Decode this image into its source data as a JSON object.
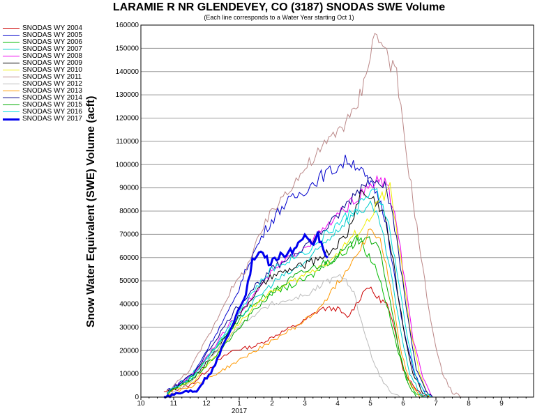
{
  "chart_data": {
    "type": "line",
    "title": "LARAMIE R NR GLENDEVEY, CO (3187) SNODAS SWE Volume",
    "subtitle": "(Each line corresponds to a Water Year starting Oct 1)",
    "ylabel": "Snow Water Equivalent (SWE) Volume (acft)",
    "xlabel": "",
    "ylim": [
      0,
      160000
    ],
    "yticks": [
      0,
      10000,
      20000,
      30000,
      40000,
      50000,
      60000,
      70000,
      80000,
      90000,
      100000,
      110000,
      120000,
      130000,
      140000,
      150000,
      160000
    ],
    "xlim": [
      10,
      10.95
    ],
    "xticks": [
      10,
      11,
      12,
      1,
      2,
      3,
      4,
      5,
      6,
      7,
      8,
      9
    ],
    "x_year_label": "2017",
    "x_unit": "month of water year",
    "grid": "horizontal",
    "legend_position": "left",
    "series": [
      {
        "name": "SNODAS WY 2004",
        "color": "#cc0000",
        "width": 1,
        "points": [
          [
            10.7,
            2000
          ],
          [
            11.5,
            5000
          ],
          [
            12.3,
            15000
          ],
          [
            12.8,
            20000
          ],
          [
            1.5,
            22000
          ],
          [
            2.3,
            28000
          ],
          [
            2.9,
            32000
          ],
          [
            3.5,
            38000
          ],
          [
            4.0,
            38000
          ],
          [
            4.3,
            34000
          ],
          [
            4.7,
            43000
          ],
          [
            4.9,
            48000
          ],
          [
            5.2,
            43000
          ],
          [
            5.5,
            40000
          ],
          [
            5.8,
            26000
          ],
          [
            6.0,
            12000
          ],
          [
            6.3,
            5000
          ],
          [
            6.6,
            1000
          ],
          [
            6.8,
            0
          ]
        ]
      },
      {
        "name": "SNODAS WY 2005",
        "color": "#0000cc",
        "width": 1,
        "points": [
          [
            10.8,
            3000
          ],
          [
            11.6,
            10000
          ],
          [
            12.2,
            25000
          ],
          [
            12.8,
            40000
          ],
          [
            1.3,
            58000
          ],
          [
            1.8,
            72000
          ],
          [
            2.3,
            82000
          ],
          [
            2.9,
            88000
          ],
          [
            3.5,
            95000
          ],
          [
            3.9,
            98000
          ],
          [
            4.3,
            102000
          ],
          [
            4.6,
            100000
          ],
          [
            4.9,
            93000
          ],
          [
            5.2,
            88000
          ],
          [
            5.5,
            75000
          ],
          [
            5.7,
            55000
          ],
          [
            6.0,
            30000
          ],
          [
            6.3,
            12000
          ],
          [
            6.6,
            3000
          ],
          [
            6.9,
            0
          ]
        ]
      },
      {
        "name": "SNODAS WY 2006",
        "color": "#00bb00",
        "width": 1,
        "points": [
          [
            10.8,
            2000
          ],
          [
            11.5,
            8000
          ],
          [
            12.2,
            20000
          ],
          [
            12.8,
            30000
          ],
          [
            1.4,
            40000
          ],
          [
            2.0,
            45000
          ],
          [
            2.6,
            48000
          ],
          [
            3.2,
            52000
          ],
          [
            3.7,
            58000
          ],
          [
            4.2,
            62000
          ],
          [
            4.6,
            70000
          ],
          [
            4.9,
            62000
          ],
          [
            5.2,
            55000
          ],
          [
            5.5,
            40000
          ],
          [
            5.8,
            22000
          ],
          [
            6.1,
            8000
          ],
          [
            6.4,
            2000
          ],
          [
            6.6,
            0
          ]
        ]
      },
      {
        "name": "SNODAS WY 2007",
        "color": "#00cccc",
        "width": 1,
        "points": [
          [
            10.8,
            2000
          ],
          [
            11.5,
            9000
          ],
          [
            12.3,
            22000
          ],
          [
            12.9,
            32000
          ],
          [
            1.5,
            42000
          ],
          [
            2.1,
            50000
          ],
          [
            2.7,
            55000
          ],
          [
            3.2,
            60000
          ],
          [
            3.7,
            68000
          ],
          [
            4.2,
            75000
          ],
          [
            4.6,
            80000
          ],
          [
            5.0,
            82000
          ],
          [
            5.3,
            75000
          ],
          [
            5.6,
            55000
          ],
          [
            5.9,
            30000
          ],
          [
            6.2,
            10000
          ],
          [
            6.5,
            2000
          ],
          [
            6.7,
            0
          ]
        ]
      },
      {
        "name": "SNODAS WY 2008",
        "color": "#ee00ee",
        "width": 1,
        "points": [
          [
            10.8,
            2000
          ],
          [
            11.6,
            10000
          ],
          [
            12.3,
            23000
          ],
          [
            12.9,
            35000
          ],
          [
            1.5,
            45000
          ],
          [
            2.1,
            55000
          ],
          [
            2.7,
            62000
          ],
          [
            3.3,
            68000
          ],
          [
            3.8,
            75000
          ],
          [
            4.3,
            82000
          ],
          [
            4.8,
            88000
          ],
          [
            5.2,
            93000
          ],
          [
            5.5,
            92000
          ],
          [
            5.8,
            75000
          ],
          [
            6.1,
            45000
          ],
          [
            6.3,
            25000
          ],
          [
            6.6,
            8000
          ],
          [
            6.9,
            0
          ]
        ]
      },
      {
        "name": "SNODAS WY 2009",
        "color": "#000000",
        "width": 1,
        "points": [
          [
            10.8,
            2000
          ],
          [
            11.6,
            8000
          ],
          [
            12.3,
            20000
          ],
          [
            12.9,
            33000
          ],
          [
            1.5,
            45000
          ],
          [
            2.0,
            52000
          ],
          [
            2.6,
            55000
          ],
          [
            3.2,
            58000
          ],
          [
            3.8,
            63000
          ],
          [
            4.3,
            70000
          ],
          [
            4.7,
            88000
          ],
          [
            5.1,
            85000
          ],
          [
            5.4,
            80000
          ],
          [
            5.7,
            58000
          ],
          [
            6.0,
            30000
          ],
          [
            6.3,
            10000
          ],
          [
            6.6,
            2000
          ],
          [
            6.8,
            0
          ]
        ]
      },
      {
        "name": "SNODAS WY 2010",
        "color": "#eeee00",
        "width": 1,
        "points": [
          [
            10.8,
            1500
          ],
          [
            11.6,
            7000
          ],
          [
            12.3,
            18000
          ],
          [
            12.9,
            30000
          ],
          [
            1.5,
            40000
          ],
          [
            2.1,
            46000
          ],
          [
            2.7,
            50000
          ],
          [
            3.3,
            55000
          ],
          [
            3.9,
            60000
          ],
          [
            4.4,
            68000
          ],
          [
            4.9,
            75000
          ],
          [
            5.3,
            85000
          ],
          [
            5.6,
            90000
          ],
          [
            5.9,
            62000
          ],
          [
            6.2,
            30000
          ],
          [
            6.5,
            10000
          ],
          [
            6.8,
            0
          ]
        ]
      },
      {
        "name": "SNODAS WY 2011",
        "color": "#bb8888",
        "width": 1,
        "points": [
          [
            10.8,
            2000
          ],
          [
            11.5,
            12000
          ],
          [
            12.2,
            30000
          ],
          [
            12.7,
            45000
          ],
          [
            1.2,
            55000
          ],
          [
            1.8,
            75000
          ],
          [
            2.4,
            88000
          ],
          [
            3.0,
            98000
          ],
          [
            3.6,
            108000
          ],
          [
            4.0,
            115000
          ],
          [
            4.5,
            122000
          ],
          [
            4.8,
            135000
          ],
          [
            5.0,
            150000
          ],
          [
            5.2,
            156000
          ],
          [
            5.5,
            148000
          ],
          [
            5.8,
            138000
          ],
          [
            6.0,
            115000
          ],
          [
            6.3,
            85000
          ],
          [
            6.6,
            55000
          ],
          [
            6.9,
            28000
          ],
          [
            7.2,
            10000
          ],
          [
            7.5,
            2000
          ],
          [
            7.8,
            0
          ]
        ]
      },
      {
        "name": "SNODAS WY 2012",
        "color": "#bbbbbb",
        "width": 1,
        "points": [
          [
            10.8,
            1000
          ],
          [
            11.5,
            6000
          ],
          [
            12.2,
            18000
          ],
          [
            12.8,
            28000
          ],
          [
            1.4,
            35000
          ],
          [
            2.0,
            40000
          ],
          [
            2.6,
            42000
          ],
          [
            3.2,
            45000
          ],
          [
            3.7,
            50000
          ],
          [
            4.2,
            52000
          ],
          [
            4.5,
            45000
          ],
          [
            4.8,
            28000
          ],
          [
            5.1,
            15000
          ],
          [
            5.4,
            6000
          ],
          [
            5.7,
            1000
          ],
          [
            5.9,
            0
          ]
        ]
      },
      {
        "name": "SNODAS WY 2013",
        "color": "#ff9900",
        "width": 1,
        "points": [
          [
            10.8,
            1000
          ],
          [
            11.6,
            5000
          ],
          [
            12.3,
            10000
          ],
          [
            12.9,
            15000
          ],
          [
            1.5,
            20000
          ],
          [
            2.1,
            25000
          ],
          [
            2.7,
            30000
          ],
          [
            3.3,
            36000
          ],
          [
            3.8,
            45000
          ],
          [
            4.3,
            55000
          ],
          [
            4.7,
            65000
          ],
          [
            5.0,
            72000
          ],
          [
            5.3,
            68000
          ],
          [
            5.6,
            48000
          ],
          [
            5.9,
            22000
          ],
          [
            6.2,
            6000
          ],
          [
            6.5,
            0
          ]
        ]
      },
      {
        "name": "SNODAS WY 2014",
        "color": "#000088",
        "width": 1,
        "points": [
          [
            10.8,
            2000
          ],
          [
            11.6,
            10000
          ],
          [
            12.3,
            25000
          ],
          [
            12.9,
            38000
          ],
          [
            1.5,
            48000
          ],
          [
            2.1,
            56000
          ],
          [
            2.7,
            62000
          ],
          [
            3.3,
            68000
          ],
          [
            3.9,
            76000
          ],
          [
            4.4,
            85000
          ],
          [
            4.8,
            92000
          ],
          [
            5.2,
            95000
          ],
          [
            5.5,
            90000
          ],
          [
            5.8,
            68000
          ],
          [
            6.1,
            38000
          ],
          [
            6.4,
            12000
          ],
          [
            6.7,
            2000
          ],
          [
            6.9,
            0
          ]
        ]
      },
      {
        "name": "SNODAS WY 2015",
        "color": "#00aa00",
        "width": 1,
        "points": [
          [
            10.8,
            1500
          ],
          [
            11.6,
            8000
          ],
          [
            12.3,
            18000
          ],
          [
            12.9,
            28000
          ],
          [
            1.5,
            38000
          ],
          [
            2.1,
            46000
          ],
          [
            2.7,
            52000
          ],
          [
            3.3,
            56000
          ],
          [
            3.9,
            60000
          ],
          [
            4.4,
            65000
          ],
          [
            4.9,
            70000
          ],
          [
            5.3,
            62000
          ],
          [
            5.6,
            42000
          ],
          [
            5.9,
            18000
          ],
          [
            6.2,
            4000
          ],
          [
            6.4,
            0
          ]
        ]
      },
      {
        "name": "SNODAS WY 2016",
        "color": "#00dddd",
        "width": 1,
        "points": [
          [
            10.8,
            2000
          ],
          [
            11.6,
            9000
          ],
          [
            12.3,
            22000
          ],
          [
            12.9,
            35000
          ],
          [
            1.4,
            45000
          ],
          [
            2.0,
            55000
          ],
          [
            2.6,
            60000
          ],
          [
            3.2,
            64000
          ],
          [
            3.8,
            72000
          ],
          [
            4.3,
            78000
          ],
          [
            4.8,
            85000
          ],
          [
            5.2,
            88000
          ],
          [
            5.5,
            78000
          ],
          [
            5.8,
            55000
          ],
          [
            6.1,
            28000
          ],
          [
            6.4,
            8000
          ],
          [
            6.7,
            1000
          ],
          [
            6.9,
            0
          ]
        ]
      },
      {
        "name": "SNODAS WY 2017",
        "color": "#0000ee",
        "width": 3,
        "points": [
          [
            10.7,
            0
          ],
          [
            11.2,
            2000
          ],
          [
            11.7,
            3000
          ],
          [
            12.2,
            12000
          ],
          [
            12.6,
            25000
          ],
          [
            12.9,
            35000
          ],
          [
            1.2,
            45000
          ],
          [
            1.4,
            58000
          ],
          [
            1.6,
            63000
          ],
          [
            1.9,
            58000
          ],
          [
            2.2,
            60000
          ],
          [
            2.5,
            62000
          ],
          [
            2.8,
            65000
          ],
          [
            3.0,
            68000
          ],
          [
            3.2,
            65000
          ],
          [
            3.4,
            70000
          ],
          [
            3.5,
            66000
          ],
          [
            3.7,
            60000
          ]
        ]
      }
    ]
  }
}
